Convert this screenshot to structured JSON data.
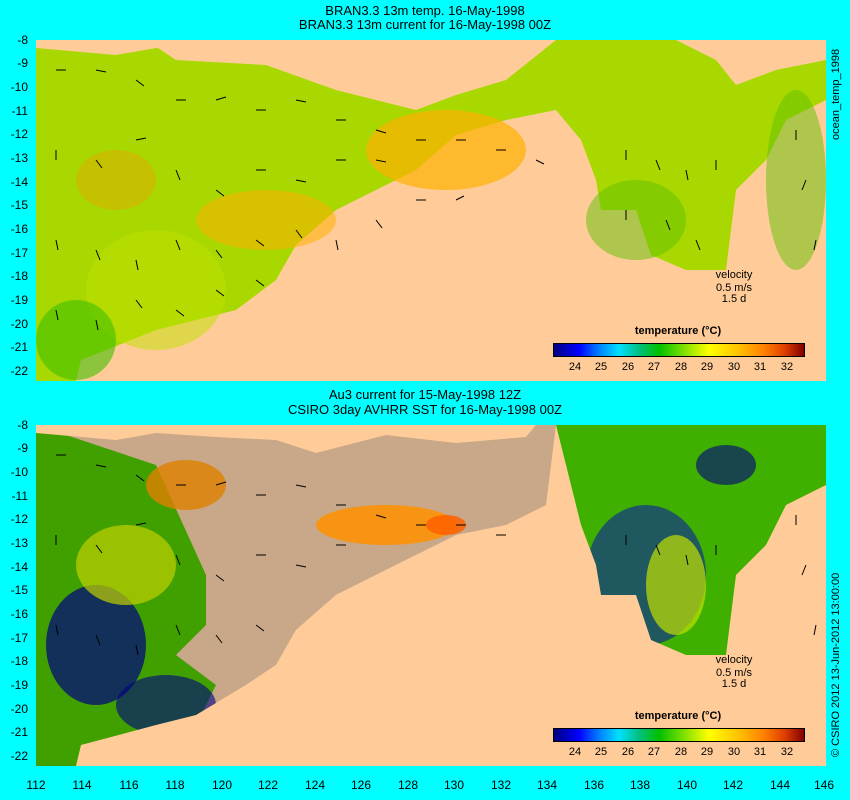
{
  "top_panel": {
    "title_line1": "BRAN3.3 13m temp. 16-May-1998",
    "title_line2": "BRAN3.3 13m current for 16-May-1998 00Z",
    "side_label": "ocean_temp_1998",
    "velocity_label": "velocity",
    "velocity_value": "0.5 m/s",
    "velocity_time": "1.5 d",
    "colorbar_title": "temperature (°C)"
  },
  "bottom_panel": {
    "title_line1": "Au3 current for 15-May-1998 12Z",
    "title_line2": "CSIRO 3day AVHRR SST for 16-May-1998 00Z",
    "side_label": "© CSIRO 2012  13-Jun-2012 13:00:00",
    "velocity_label": "velocity",
    "velocity_value": "0.5 m/s",
    "velocity_time": "1.5 d",
    "colorbar_title": "temperature (°C)"
  },
  "y_ticks": [
    "-8",
    "-9",
    "-10",
    "-11",
    "-12",
    "-13",
    "-14",
    "-15",
    "-16",
    "-17",
    "-18",
    "-19",
    "-20",
    "-21",
    "-22"
  ],
  "x_ticks": [
    "112",
    "114",
    "116",
    "118",
    "120",
    "122",
    "124",
    "126",
    "128",
    "130",
    "132",
    "134",
    "136",
    "138",
    "140",
    "142",
    "144",
    "146"
  ],
  "colorbar_ticks": [
    "24",
    "25",
    "26",
    "27",
    "28",
    "29",
    "30",
    "31",
    "32"
  ],
  "colors": {
    "frame": "#00ffff",
    "land": "#ffcc99",
    "no_data": "#c8a888"
  }
}
